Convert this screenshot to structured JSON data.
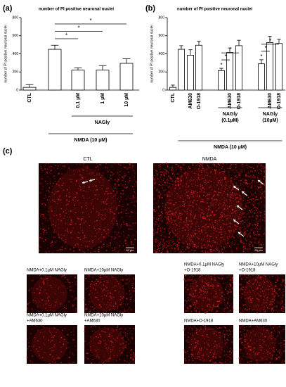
{
  "chart_data": [
    {
      "type": "bar",
      "panel": "(a)",
      "title": "number of PI positive neuronal nuclei",
      "y_label": "number of PI positive neuronal nuclei",
      "categories": [
        "CTL",
        null,
        "0.1 µM",
        "1 µM",
        "10 µM"
      ],
      "values": [
        30,
        450,
        220,
        220,
        295
      ],
      "errors": [
        30,
        45,
        25,
        50,
        50
      ],
      "ylim": [
        0,
        800
      ],
      "yticks": [
        0,
        200,
        400,
        600,
        800
      ],
      "color": "#ffffff",
      "significance": [
        {
          "label": "*",
          "from": 1,
          "to": 4
        },
        {
          "label": "*",
          "from": 1,
          "to": 3
        },
        {
          "label": "*",
          "from": 1,
          "to": 2
        }
      ],
      "groups": [
        {
          "lines": [
            "NAGly"
          ],
          "from": 2,
          "to": 4
        },
        {
          "lines": [
            "NMDA (10 µM)"
          ],
          "from": 1,
          "to": 4
        }
      ]
    },
    {
      "type": "bar",
      "panel": "(b)",
      "title": "number of PI positive neuronal nuclei",
      "y_label": "number of PI positive neuronal nuclei",
      "categories": [
        "CTL",
        null,
        "AM630",
        "O-1918",
        null,
        "AM630",
        "O-1918",
        null,
        "AM630",
        "O-1918"
      ],
      "values": [
        30,
        450,
        385,
        495,
        215,
        415,
        490,
        290,
        525,
        515
      ],
      "errors": [
        25,
        40,
        60,
        45,
        25,
        50,
        60,
        45,
        70,
        45
      ],
      "ylim": [
        0,
        800
      ],
      "yticks": [
        0,
        200,
        400,
        600,
        800
      ],
      "color": "#ffffff",
      "significance": [
        {
          "label": "*",
          "from": 4,
          "to": 4
        },
        {
          "label": "*",
          "from": 4,
          "to": 5
        },
        {
          "label": "*",
          "from": 4,
          "to": 6
        },
        {
          "label": "*",
          "from": 7,
          "to": 7
        },
        {
          "label": "*",
          "from": 7,
          "to": 8
        },
        {
          "label": "*",
          "from": 7,
          "to": 9
        }
      ],
      "groups": [
        {
          "lines": [
            "NAGly",
            "(0.1µM)"
          ],
          "from": 4,
          "to": 6
        },
        {
          "lines": [
            "NAGly",
            "(10µM)"
          ],
          "from": 7,
          "to": 9
        },
        {
          "lines": [
            "NMDA (10 µM)"
          ],
          "from": 1,
          "to": 9
        }
      ]
    }
  ],
  "images": {
    "panel": "(c)",
    "items": [
      {
        "lines": [
          "CTL"
        ],
        "scale": "50 µm"
      },
      {
        "lines": [
          "NMDA"
        ],
        "scale": "50 µm"
      },
      {
        "lines": [
          "NMDA+0.1µM NAGly"
        ]
      },
      {
        "lines": [
          "NMDA+10µM NAGly"
        ]
      },
      {
        "lines": [
          "NMDA+0.1µM NAGly",
          "+AM630"
        ]
      },
      {
        "lines": [
          "NMDA+10µM NAGly",
          "+AM630"
        ]
      },
      {
        "lines": [
          "NMDA+0.1µM NAGly",
          "+O-1918"
        ]
      },
      {
        "lines": [
          "NMDA+10µM NAGly",
          "+O-1918"
        ]
      },
      {
        "lines": [
          "NMDA+O-1918"
        ]
      },
      {
        "lines": [
          "NMDA+AM630"
        ]
      }
    ]
  }
}
